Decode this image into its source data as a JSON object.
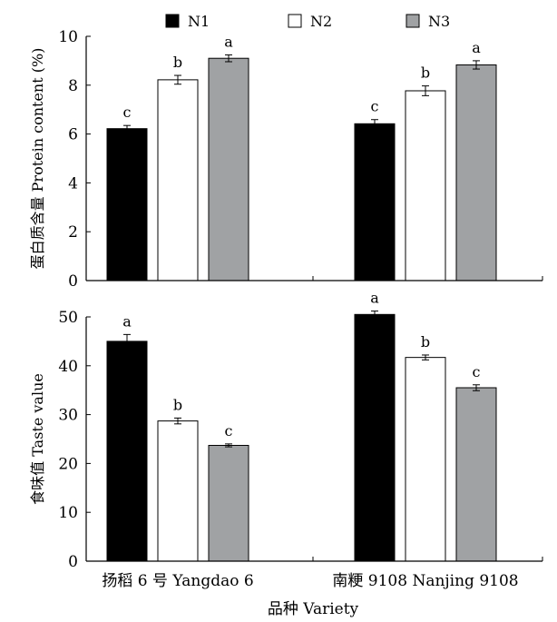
{
  "chart_data": {
    "type": "bar",
    "legend": {
      "placement": "top",
      "entries": [
        {
          "name": "N1",
          "color": "#000000"
        },
        {
          "name": "N2",
          "color": "#ffffff"
        },
        {
          "name": "N3",
          "color": "#a0a2a4"
        }
      ]
    },
    "categories": [
      "扬稻 6 号 Yangdao 6",
      "南粳 9108 Nanjing 9108"
    ],
    "xlabel": "品种 Variety",
    "panels": [
      {
        "id": "protein",
        "ylabel": "蛋白质含量 Protein content (%)",
        "ylim": [
          0,
          10
        ],
        "yticks": [
          0,
          2,
          4,
          6,
          8,
          10
        ],
        "series": [
          {
            "name": "N1",
            "values": [
              6.22,
              6.42
            ],
            "errors": [
              0.13,
              0.17
            ],
            "letters": [
              "c",
              "c"
            ]
          },
          {
            "name": "N2",
            "values": [
              8.22,
              7.77
            ],
            "errors": [
              0.18,
              0.2
            ],
            "letters": [
              "b",
              "b"
            ]
          },
          {
            "name": "N3",
            "values": [
              9.1,
              8.83
            ],
            "errors": [
              0.14,
              0.17
            ],
            "letters": [
              "a",
              "a"
            ]
          }
        ]
      },
      {
        "id": "taste",
        "ylabel": "食味值 Taste value",
        "ylim": [
          0,
          50
        ],
        "yticks": [
          0,
          10,
          20,
          30,
          40,
          50
        ],
        "series": [
          {
            "name": "N1",
            "values": [
              45.0,
              50.5
            ],
            "errors": [
              1.4,
              0.7
            ],
            "letters": [
              "a",
              "a"
            ]
          },
          {
            "name": "N2",
            "values": [
              28.7,
              41.7
            ],
            "errors": [
              0.6,
              0.5
            ],
            "letters": [
              "b",
              "b"
            ]
          },
          {
            "name": "N3",
            "values": [
              23.7,
              35.5
            ],
            "errors": [
              0.3,
              0.6
            ],
            "letters": [
              "c",
              "c"
            ]
          }
        ]
      }
    ]
  }
}
